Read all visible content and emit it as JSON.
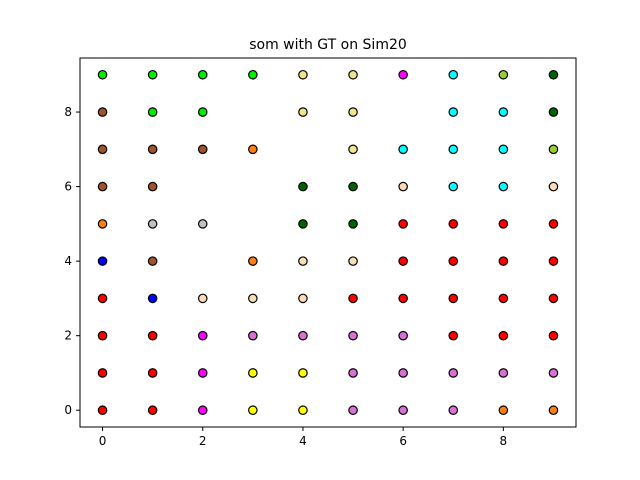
{
  "chart_data": {
    "type": "scatter",
    "title": "som with GT on Sim20",
    "xlabel": "",
    "ylabel": "",
    "xlim": [
      -0.45,
      9.45
    ],
    "ylim": [
      -0.45,
      9.45
    ],
    "xticks": [
      0,
      2,
      4,
      6,
      8
    ],
    "yticks": [
      0,
      2,
      4,
      6,
      8
    ],
    "grid": false,
    "legend": "none",
    "marker_edge_color": "#000000",
    "colors": {
      "red": "#ff0000",
      "blue": "#0000ff",
      "lime": "#00ee00",
      "green": "#006400",
      "sienna": "#8b4513",
      "brown": "#a0522d",
      "orange": "#ff7f0e",
      "wheat": "#f5deb3",
      "khaki": "#f0e68c",
      "peach": "#ffdab9",
      "magenta": "#ff00ff",
      "orchid": "#da70d6",
      "violet": "#ee82ee",
      "yellow": "#ffff00",
      "cyan": "#00ffff",
      "olive": "#9acd32",
      "silver": "#c0c0c0"
    },
    "points": [
      {
        "x": 0,
        "y": 0,
        "c": "red"
      },
      {
        "x": 0,
        "y": 1,
        "c": "red"
      },
      {
        "x": 0,
        "y": 2,
        "c": "red"
      },
      {
        "x": 0,
        "y": 3,
        "c": "red"
      },
      {
        "x": 0,
        "y": 4,
        "c": "blue"
      },
      {
        "x": 0,
        "y": 5,
        "c": "orange"
      },
      {
        "x": 0,
        "y": 6,
        "c": "brown"
      },
      {
        "x": 0,
        "y": 7,
        "c": "brown"
      },
      {
        "x": 0,
        "y": 8,
        "c": "brown"
      },
      {
        "x": 0,
        "y": 9,
        "c": "lime"
      },
      {
        "x": 1,
        "y": 0,
        "c": "red"
      },
      {
        "x": 1,
        "y": 1,
        "c": "red"
      },
      {
        "x": 1,
        "y": 2,
        "c": "red"
      },
      {
        "x": 1,
        "y": 3,
        "c": "blue"
      },
      {
        "x": 1,
        "y": 4,
        "c": "brown"
      },
      {
        "x": 1,
        "y": 5,
        "c": "silver"
      },
      {
        "x": 1,
        "y": 6,
        "c": "brown"
      },
      {
        "x": 1,
        "y": 7,
        "c": "brown"
      },
      {
        "x": 1,
        "y": 8,
        "c": "lime"
      },
      {
        "x": 1,
        "y": 9,
        "c": "lime"
      },
      {
        "x": 2,
        "y": 0,
        "c": "magenta"
      },
      {
        "x": 2,
        "y": 1,
        "c": "magenta"
      },
      {
        "x": 2,
        "y": 2,
        "c": "magenta"
      },
      {
        "x": 2,
        "y": 3,
        "c": "peach"
      },
      {
        "x": 2,
        "y": 5,
        "c": "silver"
      },
      {
        "x": 2,
        "y": 7,
        "c": "brown"
      },
      {
        "x": 2,
        "y": 8,
        "c": "lime"
      },
      {
        "x": 2,
        "y": 9,
        "c": "lime"
      },
      {
        "x": 3,
        "y": 0,
        "c": "yellow"
      },
      {
        "x": 3,
        "y": 1,
        "c": "yellow"
      },
      {
        "x": 3,
        "y": 2,
        "c": "orchid"
      },
      {
        "x": 3,
        "y": 3,
        "c": "wheat"
      },
      {
        "x": 3,
        "y": 4,
        "c": "orange"
      },
      {
        "x": 3,
        "y": 7,
        "c": "orange"
      },
      {
        "x": 3,
        "y": 9,
        "c": "lime"
      },
      {
        "x": 4,
        "y": 0,
        "c": "yellow"
      },
      {
        "x": 4,
        "y": 1,
        "c": "yellow"
      },
      {
        "x": 4,
        "y": 2,
        "c": "orchid"
      },
      {
        "x": 4,
        "y": 3,
        "c": "peach"
      },
      {
        "x": 4,
        "y": 4,
        "c": "wheat"
      },
      {
        "x": 4,
        "y": 5,
        "c": "green"
      },
      {
        "x": 4,
        "y": 6,
        "c": "green"
      },
      {
        "x": 4,
        "y": 8,
        "c": "khaki"
      },
      {
        "x": 4,
        "y": 9,
        "c": "khaki"
      },
      {
        "x": 5,
        "y": 0,
        "c": "orchid"
      },
      {
        "x": 5,
        "y": 1,
        "c": "orchid"
      },
      {
        "x": 5,
        "y": 2,
        "c": "orchid"
      },
      {
        "x": 5,
        "y": 3,
        "c": "red"
      },
      {
        "x": 5,
        "y": 4,
        "c": "wheat"
      },
      {
        "x": 5,
        "y": 5,
        "c": "green"
      },
      {
        "x": 5,
        "y": 6,
        "c": "green"
      },
      {
        "x": 5,
        "y": 7,
        "c": "khaki"
      },
      {
        "x": 5,
        "y": 8,
        "c": "khaki"
      },
      {
        "x": 5,
        "y": 9,
        "c": "khaki"
      },
      {
        "x": 6,
        "y": 0,
        "c": "orchid"
      },
      {
        "x": 6,
        "y": 1,
        "c": "orchid"
      },
      {
        "x": 6,
        "y": 2,
        "c": "orchid"
      },
      {
        "x": 6,
        "y": 3,
        "c": "red"
      },
      {
        "x": 6,
        "y": 4,
        "c": "red"
      },
      {
        "x": 6,
        "y": 5,
        "c": "red"
      },
      {
        "x": 6,
        "y": 6,
        "c": "peach"
      },
      {
        "x": 6,
        "y": 7,
        "c": "cyan"
      },
      {
        "x": 6,
        "y": 9,
        "c": "magenta"
      },
      {
        "x": 7,
        "y": 0,
        "c": "orchid"
      },
      {
        "x": 7,
        "y": 1,
        "c": "orchid"
      },
      {
        "x": 7,
        "y": 2,
        "c": "red"
      },
      {
        "x": 7,
        "y": 3,
        "c": "red"
      },
      {
        "x": 7,
        "y": 4,
        "c": "red"
      },
      {
        "x": 7,
        "y": 5,
        "c": "red"
      },
      {
        "x": 7,
        "y": 6,
        "c": "cyan"
      },
      {
        "x": 7,
        "y": 7,
        "c": "cyan"
      },
      {
        "x": 7,
        "y": 8,
        "c": "cyan"
      },
      {
        "x": 7,
        "y": 9,
        "c": "cyan"
      },
      {
        "x": 8,
        "y": 0,
        "c": "orange"
      },
      {
        "x": 8,
        "y": 1,
        "c": "orchid"
      },
      {
        "x": 8,
        "y": 2,
        "c": "red"
      },
      {
        "x": 8,
        "y": 3,
        "c": "red"
      },
      {
        "x": 8,
        "y": 4,
        "c": "red"
      },
      {
        "x": 8,
        "y": 5,
        "c": "red"
      },
      {
        "x": 8,
        "y": 6,
        "c": "cyan"
      },
      {
        "x": 8,
        "y": 7,
        "c": "cyan"
      },
      {
        "x": 8,
        "y": 8,
        "c": "cyan"
      },
      {
        "x": 8,
        "y": 9,
        "c": "olive"
      },
      {
        "x": 9,
        "y": 0,
        "c": "orange"
      },
      {
        "x": 9,
        "y": 1,
        "c": "orchid"
      },
      {
        "x": 9,
        "y": 2,
        "c": "red"
      },
      {
        "x": 9,
        "y": 3,
        "c": "red"
      },
      {
        "x": 9,
        "y": 4,
        "c": "red"
      },
      {
        "x": 9,
        "y": 5,
        "c": "red"
      },
      {
        "x": 9,
        "y": 6,
        "c": "peach"
      },
      {
        "x": 9,
        "y": 7,
        "c": "olive"
      },
      {
        "x": 9,
        "y": 8,
        "c": "green"
      },
      {
        "x": 9,
        "y": 9,
        "c": "green"
      }
    ]
  }
}
